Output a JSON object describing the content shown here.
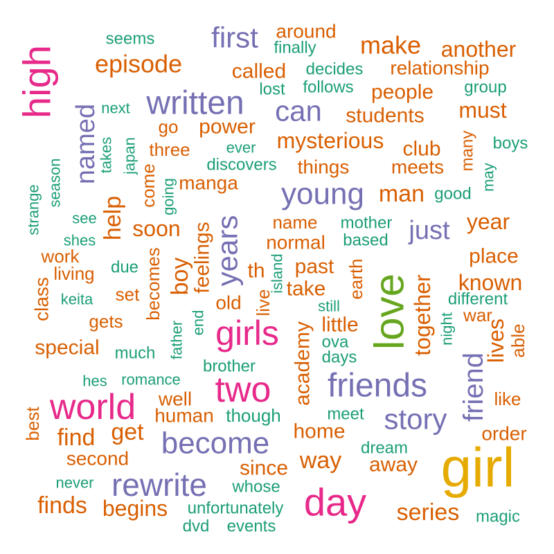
{
  "chart_data": {
    "type": "wordcloud",
    "palette": {
      "tier1": "#E6AB02",
      "tier2": "#66A61E",
      "tier3": "#E7298A",
      "tier4": "#7570B3",
      "tier5": "#D95F02",
      "tier6": "#1B9E77"
    },
    "words": [
      {
        "text": "girl",
        "tier": "tier1"
      },
      {
        "text": "love",
        "tier": "tier2"
      },
      {
        "text": "high",
        "tier": "tier3"
      },
      {
        "text": "day",
        "tier": "tier3"
      },
      {
        "text": "two",
        "tier": "tier3"
      },
      {
        "text": "world",
        "tier": "tier3"
      },
      {
        "text": "girls",
        "tier": "tier3"
      },
      {
        "text": "written",
        "tier": "tier4"
      },
      {
        "text": "friends",
        "tier": "tier4"
      },
      {
        "text": "rewrite",
        "tier": "tier4"
      },
      {
        "text": "become",
        "tier": "tier4"
      },
      {
        "text": "young",
        "tier": "tier4"
      },
      {
        "text": "first",
        "tier": "tier4"
      },
      {
        "text": "story",
        "tier": "tier4"
      },
      {
        "text": "can",
        "tier": "tier4"
      },
      {
        "text": "years",
        "tier": "tier4"
      },
      {
        "text": "friend",
        "tier": "tier4"
      },
      {
        "text": "named",
        "tier": "tier4"
      },
      {
        "text": "just",
        "tier": "tier4"
      },
      {
        "text": "episode",
        "tier": "tier5"
      },
      {
        "text": "make",
        "tier": "tier5"
      },
      {
        "text": "another",
        "tier": "tier5"
      },
      {
        "text": "mysterious",
        "tier": "tier5"
      },
      {
        "text": "must",
        "tier": "tier5"
      },
      {
        "text": "people",
        "tier": "tier5"
      },
      {
        "text": "students",
        "tier": "tier5"
      },
      {
        "text": "relationship",
        "tier": "tier5"
      },
      {
        "text": "called",
        "tier": "tier5"
      },
      {
        "text": "around",
        "tier": "tier5"
      },
      {
        "text": "power",
        "tier": "tier5"
      },
      {
        "text": "club",
        "tier": "tier5"
      },
      {
        "text": "meets",
        "tier": "tier5"
      },
      {
        "text": "things",
        "tier": "tier5"
      },
      {
        "text": "three",
        "tier": "tier5"
      },
      {
        "text": "go",
        "tier": "tier5"
      },
      {
        "text": "manga",
        "tier": "tier5"
      },
      {
        "text": "man",
        "tier": "tier5"
      },
      {
        "text": "help",
        "tier": "tier5"
      },
      {
        "text": "soon",
        "tier": "tier5"
      },
      {
        "text": "year",
        "tier": "tier5"
      },
      {
        "text": "name",
        "tier": "tier5"
      },
      {
        "text": "normal",
        "tier": "tier5"
      },
      {
        "text": "place",
        "tier": "tier5"
      },
      {
        "text": "known",
        "tier": "tier5"
      },
      {
        "text": "past",
        "tier": "tier5"
      },
      {
        "text": "take",
        "tier": "tier5"
      },
      {
        "text": "th",
        "tier": "tier5"
      },
      {
        "text": "boy",
        "tier": "tier5"
      },
      {
        "text": "feelings",
        "tier": "tier5"
      },
      {
        "text": "old",
        "tier": "tier5"
      },
      {
        "text": "together",
        "tier": "tier5"
      },
      {
        "text": "academy",
        "tier": "tier5"
      },
      {
        "text": "little",
        "tier": "tier5"
      },
      {
        "text": "lives",
        "tier": "tier5"
      },
      {
        "text": "special",
        "tier": "tier5"
      },
      {
        "text": "work",
        "tier": "tier5"
      },
      {
        "text": "living",
        "tier": "tier5"
      },
      {
        "text": "class",
        "tier": "tier5"
      },
      {
        "text": "set",
        "tier": "tier5"
      },
      {
        "text": "gets",
        "tier": "tier5"
      },
      {
        "text": "becomes",
        "tier": "tier5"
      },
      {
        "text": "come",
        "tier": "tier5"
      },
      {
        "text": "live",
        "tier": "tier5"
      },
      {
        "text": "earth",
        "tier": "tier5"
      },
      {
        "text": "war",
        "tier": "tier5"
      },
      {
        "text": "able",
        "tier": "tier5"
      },
      {
        "text": "like",
        "tier": "tier5"
      },
      {
        "text": "order",
        "tier": "tier5"
      },
      {
        "text": "find",
        "tier": "tier5"
      },
      {
        "text": "get",
        "tier": "tier5"
      },
      {
        "text": "well",
        "tier": "tier5"
      },
      {
        "text": "human",
        "tier": "tier5"
      },
      {
        "text": "home",
        "tier": "tier5"
      },
      {
        "text": "way",
        "tier": "tier5"
      },
      {
        "text": "away",
        "tier": "tier5"
      },
      {
        "text": "since",
        "tier": "tier5"
      },
      {
        "text": "second",
        "tier": "tier5"
      },
      {
        "text": "best",
        "tier": "tier5"
      },
      {
        "text": "finds",
        "tier": "tier5"
      },
      {
        "text": "begins",
        "tier": "tier5"
      },
      {
        "text": "series",
        "tier": "tier5"
      },
      {
        "text": "many",
        "tier": "tier5"
      },
      {
        "text": "seems",
        "tier": "tier6"
      },
      {
        "text": "finally",
        "tier": "tier6"
      },
      {
        "text": "decides",
        "tier": "tier6"
      },
      {
        "text": "follows",
        "tier": "tier6"
      },
      {
        "text": "lost",
        "tier": "tier6"
      },
      {
        "text": "group",
        "tier": "tier6"
      },
      {
        "text": "next",
        "tier": "tier6"
      },
      {
        "text": "boys",
        "tier": "tier6"
      },
      {
        "text": "ever",
        "tier": "tier6"
      },
      {
        "text": "discovers",
        "tier": "tier6"
      },
      {
        "text": "takes",
        "tier": "tier6"
      },
      {
        "text": "japan",
        "tier": "tier6"
      },
      {
        "text": "season",
        "tier": "tier6"
      },
      {
        "text": "going",
        "tier": "tier6"
      },
      {
        "text": "good",
        "tier": "tier6"
      },
      {
        "text": "may",
        "tier": "tier6"
      },
      {
        "text": "strange",
        "tier": "tier6"
      },
      {
        "text": "see",
        "tier": "tier6"
      },
      {
        "text": "shes",
        "tier": "tier6"
      },
      {
        "text": "mother",
        "tier": "tier6"
      },
      {
        "text": "based",
        "tier": "tier6"
      },
      {
        "text": "due",
        "tier": "tier6"
      },
      {
        "text": "keita",
        "tier": "tier6"
      },
      {
        "text": "island",
        "tier": "tier6"
      },
      {
        "text": "still",
        "tier": "tier6"
      },
      {
        "text": "different",
        "tier": "tier6"
      },
      {
        "text": "night",
        "tier": "tier6"
      },
      {
        "text": "end",
        "tier": "tier6"
      },
      {
        "text": "father",
        "tier": "tier6"
      },
      {
        "text": "much",
        "tier": "tier6"
      },
      {
        "text": "ova",
        "tier": "tier6"
      },
      {
        "text": "days",
        "tier": "tier6"
      },
      {
        "text": "brother",
        "tier": "tier6"
      },
      {
        "text": "hes",
        "tier": "tier6"
      },
      {
        "text": "romance",
        "tier": "tier6"
      },
      {
        "text": "though",
        "tier": "tier6"
      },
      {
        "text": "meet",
        "tier": "tier6"
      },
      {
        "text": "dream",
        "tier": "tier6"
      },
      {
        "text": "never",
        "tier": "tier6"
      },
      {
        "text": "whose",
        "tier": "tier6"
      },
      {
        "text": "unfortunately",
        "tier": "tier6"
      },
      {
        "text": "dvd",
        "tier": "tier6"
      },
      {
        "text": "events",
        "tier": "tier6"
      },
      {
        "text": "magic",
        "tier": "tier6"
      }
    ]
  }
}
